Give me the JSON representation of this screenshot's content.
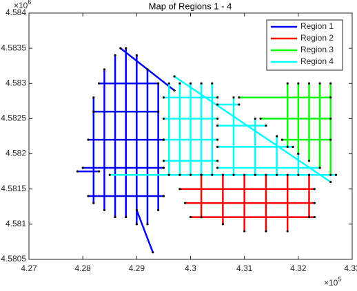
{
  "chart_data": {
    "type": "line",
    "title": "Map of Regions 1 - 4",
    "x_multiplier": {
      "base": "×10",
      "power": "5"
    },
    "y_multiplier": {
      "base": "×10",
      "power": "6"
    },
    "xlim": [
      427000,
      433000
    ],
    "ylim": [
      4580500,
      4584000
    ],
    "xticks": [
      {
        "value": 427000,
        "label": "4.27"
      },
      {
        "value": 428000,
        "label": "4.28"
      },
      {
        "value": 429000,
        "label": "4.29"
      },
      {
        "value": 430000,
        "label": "4.3"
      },
      {
        "value": 431000,
        "label": "4.31"
      },
      {
        "value": 432000,
        "label": "4.32"
      },
      {
        "value": 433000,
        "label": "4.33"
      }
    ],
    "yticks": [
      {
        "value": 4580500,
        "label": "4.5805"
      },
      {
        "value": 4581000,
        "label": "4.581"
      },
      {
        "value": 4581500,
        "label": "4.5815"
      },
      {
        "value": 4582000,
        "label": "4.582"
      },
      {
        "value": 4582500,
        "label": "4.5825"
      },
      {
        "value": 4583000,
        "label": "4.583"
      },
      {
        "value": 4583500,
        "label": "4.5835"
      },
      {
        "value": 4584000,
        "label": "4.584"
      }
    ],
    "grid": false,
    "legend": "northeast",
    "node_color": "#000000",
    "series": [
      {
        "name": "Region 1",
        "color": "#0000ff",
        "x": [
          428200,
          428200,
          null,
          428400,
          428400,
          null,
          428600,
          428600,
          null,
          428800,
          428800,
          null,
          429000,
          429000,
          null,
          429200,
          429200,
          null,
          429400,
          429400,
          null,
          428100,
          429500,
          null,
          428000,
          429500,
          null,
          428100,
          429500,
          null,
          428200,
          429400,
          null,
          428300,
          429400,
          null,
          428700,
          429700,
          null,
          429000,
          429300,
          null,
          427900,
          428300
        ],
        "y": [
          4581300,
          4582800,
          null,
          4581200,
          4583200,
          null,
          4581100,
          4583400,
          null,
          4581100,
          4583500,
          null,
          4581000,
          4583400,
          null,
          4581000,
          4583200,
          null,
          4581200,
          4583000,
          null,
          4581400,
          4581400,
          null,
          4581800,
          4581800,
          null,
          4582200,
          4582200,
          null,
          4582600,
          4582600,
          null,
          4583000,
          4583000,
          null,
          4583500,
          4582900,
          null,
          4581200,
          4580600,
          null,
          4581750,
          4581750
        ]
      },
      {
        "name": "Region 2",
        "color": "#ff0000",
        "x": [
          430200,
          430200,
          null,
          430600,
          430600,
          null,
          431000,
          431000,
          null,
          431400,
          431400,
          null,
          431800,
          431800,
          null,
          432200,
          432200,
          null,
          430000,
          432300,
          null,
          429900,
          432300,
          null,
          429800,
          432300
        ],
        "y": [
          4581100,
          4581700,
          null,
          4581000,
          4581700,
          null,
          4580900,
          4581700,
          null,
          4580900,
          4581700,
          null,
          4580900,
          4581700,
          null,
          4581100,
          4581700,
          null,
          4581100,
          4581100,
          null,
          4581300,
          4581300,
          null,
          4581500,
          4581500
        ]
      },
      {
        "name": "Region 3",
        "color": "#00ff00",
        "x": [
          431800,
          431800,
          null,
          432000,
          432000,
          null,
          432200,
          432200,
          null,
          432400,
          432400,
          null,
          432600,
          432600,
          null,
          431700,
          432600,
          null,
          431300,
          432600,
          null,
          430900,
          432600
        ],
        "y": [
          4582100,
          4583000,
          null,
          4582000,
          4583000,
          null,
          4581900,
          4583000,
          null,
          4581800,
          4583000,
          null,
          4581700,
          4583000,
          null,
          4582200,
          4582200,
          null,
          4582500,
          4582500,
          null,
          4582800,
          4582800
        ]
      },
      {
        "name": "Region 4",
        "color": "#00ffff",
        "x": [
          429600,
          429600,
          null,
          429800,
          429800,
          null,
          430000,
          430000,
          null,
          430200,
          430200,
          null,
          430400,
          430400,
          null,
          429500,
          430500,
          null,
          429500,
          430500,
          null,
          429500,
          430500,
          null,
          429500,
          430500,
          null,
          430500,
          432400,
          null,
          430500,
          431900,
          null,
          430500,
          431400,
          null,
          430500,
          430900,
          null,
          430800,
          430800,
          null,
          431200,
          431200,
          null,
          431600,
          431600,
          null,
          432000,
          432000,
          null,
          429700,
          432600,
          null,
          428500,
          432700
        ],
        "y": [
          4581700,
          4583000,
          null,
          4581700,
          4583000,
          null,
          4581700,
          4583000,
          null,
          4581700,
          4583000,
          null,
          4581700,
          4583000,
          null,
          4581900,
          4581900,
          null,
          4582200,
          4582200,
          null,
          4582500,
          4582500,
          null,
          4582800,
          4582800,
          null,
          4581800,
          4581800,
          null,
          4582100,
          4582100,
          null,
          4582400,
          4582400,
          null,
          4582700,
          4582700,
          null,
          4581700,
          4582800,
          null,
          4581700,
          4582500,
          null,
          4581700,
          4582250,
          null,
          4581700,
          4582000,
          null,
          4583100,
          4581600,
          null,
          4581700,
          4581700
        ]
      }
    ]
  }
}
